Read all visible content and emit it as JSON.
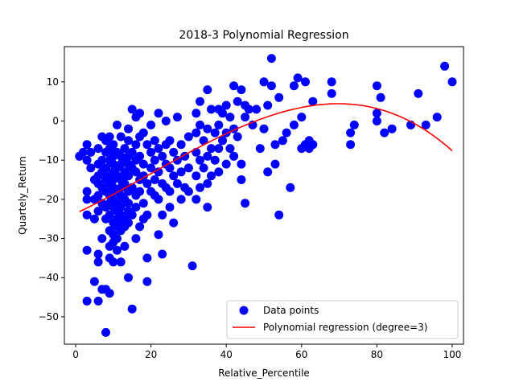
{
  "chart_data": {
    "type": "scatter",
    "title": "2018-3 Polynomial Regression",
    "xlabel": "Relative_Percentile",
    "ylabel": "Quartely_Return",
    "xlim": [
      -3,
      103
    ],
    "ylim": [
      -57,
      19
    ],
    "xticks": [
      0,
      20,
      40,
      60,
      80,
      100
    ],
    "yticks": [
      -50,
      -40,
      -30,
      -20,
      -10,
      0,
      10
    ],
    "grid": false,
    "legend_position": "bottom-right",
    "series": [
      {
        "name": "Data points",
        "kind": "scatter",
        "color": "#0000ff",
        "points": [
          [
            1,
            -9
          ],
          [
            2,
            -8
          ],
          [
            3,
            -10
          ],
          [
            3,
            -6
          ],
          [
            3,
            -18
          ],
          [
            3,
            -20
          ],
          [
            3,
            -24
          ],
          [
            3,
            -33
          ],
          [
            3,
            -46
          ],
          [
            4,
            -8
          ],
          [
            4,
            -12
          ],
          [
            5,
            -15
          ],
          [
            5,
            -20
          ],
          [
            5,
            -25
          ],
          [
            5,
            -41
          ],
          [
            6,
            -7
          ],
          [
            6,
            -11
          ],
          [
            6,
            -14
          ],
          [
            6,
            -16
          ],
          [
            6,
            -19
          ],
          [
            6,
            -23
          ],
          [
            6,
            -34
          ],
          [
            6,
            -36
          ],
          [
            6,
            -46
          ],
          [
            7,
            -4
          ],
          [
            7,
            -10
          ],
          [
            7,
            -13
          ],
          [
            7,
            -17
          ],
          [
            7,
            -21
          ],
          [
            7,
            -30
          ],
          [
            7,
            -43
          ],
          [
            8,
            -5
          ],
          [
            8,
            -8
          ],
          [
            8,
            -12
          ],
          [
            8,
            -15
          ],
          [
            8,
            -18
          ],
          [
            8,
            -22
          ],
          [
            8,
            -25
          ],
          [
            8,
            -43
          ],
          [
            8,
            -54
          ],
          [
            9,
            -4
          ],
          [
            9,
            -7
          ],
          [
            9,
            -10
          ],
          [
            9,
            -14
          ],
          [
            9,
            -16
          ],
          [
            9,
            -19
          ],
          [
            9,
            -21
          ],
          [
            9,
            -24
          ],
          [
            9,
            -28
          ],
          [
            9,
            -32
          ],
          [
            9,
            -35
          ],
          [
            9,
            -44
          ],
          [
            10,
            -6
          ],
          [
            10,
            -9
          ],
          [
            10,
            -11
          ],
          [
            10,
            -13
          ],
          [
            10,
            -15
          ],
          [
            10,
            -17
          ],
          [
            10,
            -20
          ],
          [
            10,
            -22
          ],
          [
            10,
            -26
          ],
          [
            10,
            -29
          ],
          [
            10,
            -31
          ],
          [
            10,
            -36
          ],
          [
            11,
            -1
          ],
          [
            11,
            -8
          ],
          [
            11,
            -12
          ],
          [
            11,
            -14
          ],
          [
            11,
            -18
          ],
          [
            11,
            -21
          ],
          [
            11,
            -23
          ],
          [
            11,
            -25
          ],
          [
            11,
            -27
          ],
          [
            11,
            -30
          ],
          [
            11,
            -33
          ],
          [
            12,
            -4
          ],
          [
            12,
            -9
          ],
          [
            12,
            -11
          ],
          [
            12,
            -15
          ],
          [
            12,
            -17
          ],
          [
            12,
            -19
          ],
          [
            12,
            -22
          ],
          [
            12,
            -24
          ],
          [
            12,
            -26
          ],
          [
            12,
            -28
          ],
          [
            12,
            -36
          ],
          [
            13,
            -7
          ],
          [
            13,
            -10
          ],
          [
            13,
            -13
          ],
          [
            13,
            -16
          ],
          [
            13,
            -20
          ],
          [
            13,
            -25
          ],
          [
            13,
            -27
          ],
          [
            13,
            -32
          ],
          [
            14,
            -2
          ],
          [
            14,
            -5
          ],
          [
            14,
            -9
          ],
          [
            14,
            -11
          ],
          [
            14,
            -14
          ],
          [
            14,
            -18
          ],
          [
            14,
            -21
          ],
          [
            14,
            -23
          ],
          [
            14,
            -26
          ],
          [
            14,
            -40
          ],
          [
            15,
            3
          ],
          [
            15,
            -8
          ],
          [
            15,
            -12
          ],
          [
            15,
            -17
          ],
          [
            15,
            -24
          ],
          [
            15,
            -48
          ],
          [
            16,
            1
          ],
          [
            16,
            -6
          ],
          [
            16,
            -10
          ],
          [
            16,
            -13
          ],
          [
            16,
            -19
          ],
          [
            16,
            -22
          ],
          [
            16,
            -30
          ],
          [
            17,
            2
          ],
          [
            17,
            -4
          ],
          [
            17,
            -9
          ],
          [
            17,
            -15
          ],
          [
            17,
            -18
          ],
          [
            17,
            -27
          ],
          [
            18,
            -3
          ],
          [
            18,
            -11
          ],
          [
            18,
            -14
          ],
          [
            18,
            -21
          ],
          [
            18,
            -25
          ],
          [
            19,
            -6
          ],
          [
            19,
            -16
          ],
          [
            19,
            -24
          ],
          [
            19,
            -35
          ],
          [
            19,
            -41
          ],
          [
            20,
            -1
          ],
          [
            20,
            -8
          ],
          [
            20,
            -12
          ],
          [
            20,
            -18
          ],
          [
            21,
            -5
          ],
          [
            21,
            -10
          ],
          [
            21,
            -15
          ],
          [
            21,
            -19
          ],
          [
            22,
            2
          ],
          [
            22,
            -7
          ],
          [
            22,
            -13
          ],
          [
            22,
            -20
          ],
          [
            22,
            -29
          ],
          [
            23,
            -9
          ],
          [
            23,
            -16
          ],
          [
            23,
            -24
          ],
          [
            23,
            -34
          ],
          [
            24,
            0
          ],
          [
            24,
            -6
          ],
          [
            24,
            -11
          ],
          [
            24,
            -17
          ],
          [
            25,
            -5
          ],
          [
            25,
            -12
          ],
          [
            25,
            -18
          ],
          [
            25,
            -22
          ],
          [
            26,
            -8
          ],
          [
            26,
            -14
          ],
          [
            26,
            -26
          ],
          [
            27,
            1
          ],
          [
            27,
            -10
          ],
          [
            27,
            -16
          ],
          [
            28,
            -6
          ],
          [
            28,
            -13
          ],
          [
            28,
            -20
          ],
          [
            29,
            -9
          ],
          [
            29,
            -17
          ],
          [
            30,
            -4
          ],
          [
            30,
            -12
          ],
          [
            30,
            -18
          ],
          [
            31,
            -37
          ],
          [
            32,
            2
          ],
          [
            32,
            -3
          ],
          [
            32,
            -8
          ],
          [
            32,
            -14
          ],
          [
            32,
            -20
          ],
          [
            33,
            5
          ],
          [
            33,
            -1
          ],
          [
            33,
            -10
          ],
          [
            33,
            -17
          ],
          [
            34,
            -5
          ],
          [
            34,
            -12
          ],
          [
            35,
            8
          ],
          [
            35,
            -2
          ],
          [
            35,
            -9
          ],
          [
            35,
            -16
          ],
          [
            35,
            -22
          ],
          [
            36,
            3
          ],
          [
            36,
            -7
          ],
          [
            36,
            -14
          ],
          [
            37,
            -3
          ],
          [
            37,
            -10
          ],
          [
            38,
            3
          ],
          [
            38,
            -1
          ],
          [
            38,
            -7
          ],
          [
            38,
            -13
          ],
          [
            39,
            2
          ],
          [
            39,
            -5
          ],
          [
            40,
            4
          ],
          [
            40,
            -3
          ],
          [
            40,
            -11
          ],
          [
            41,
            1
          ],
          [
            41,
            -7
          ],
          [
            42,
            9
          ],
          [
            42,
            -2
          ],
          [
            42,
            -9
          ],
          [
            43,
            5
          ],
          [
            43,
            -4
          ],
          [
            44,
            8
          ],
          [
            44,
            -11
          ],
          [
            44,
            -15
          ],
          [
            45,
            4
          ],
          [
            45,
            1
          ],
          [
            45,
            -21
          ],
          [
            46,
            3
          ],
          [
            47,
            -1
          ],
          [
            48,
            3
          ],
          [
            49,
            -7
          ],
          [
            50,
            10
          ],
          [
            50,
            -2
          ],
          [
            51,
            4
          ],
          [
            51,
            -13
          ],
          [
            52,
            16
          ],
          [
            52,
            9
          ],
          [
            53,
            -6
          ],
          [
            53,
            -11
          ],
          [
            54,
            6
          ],
          [
            54,
            -24
          ],
          [
            55,
            -5
          ],
          [
            56,
            -3
          ],
          [
            57,
            -17
          ],
          [
            58,
            -1
          ],
          [
            58,
            9
          ],
          [
            59,
            11
          ],
          [
            60,
            1
          ],
          [
            60,
            -7
          ],
          [
            61,
            10
          ],
          [
            61,
            -6
          ],
          [
            62,
            -5
          ],
          [
            62,
            -7
          ],
          [
            63,
            5
          ],
          [
            63,
            -6
          ],
          [
            68,
            10
          ],
          [
            68,
            7
          ],
          [
            73,
            -3
          ],
          [
            73,
            -6
          ],
          [
            74,
            -1
          ],
          [
            80,
            9
          ],
          [
            80,
            2
          ],
          [
            80,
            0
          ],
          [
            81,
            6
          ],
          [
            82,
            -3
          ],
          [
            84,
            -2
          ],
          [
            89,
            -1
          ],
          [
            91,
            7
          ],
          [
            93,
            -1
          ],
          [
            96,
            1
          ],
          [
            98,
            14
          ],
          [
            100,
            10
          ]
        ]
      },
      {
        "name": "Polynomial regression (degree=3)",
        "kind": "line",
        "color": "#ff0000",
        "coefficients": [
          -23.6,
          0.45,
          0.0044,
          -7.3e-05
        ],
        "x_range": [
          1,
          100
        ]
      }
    ]
  }
}
